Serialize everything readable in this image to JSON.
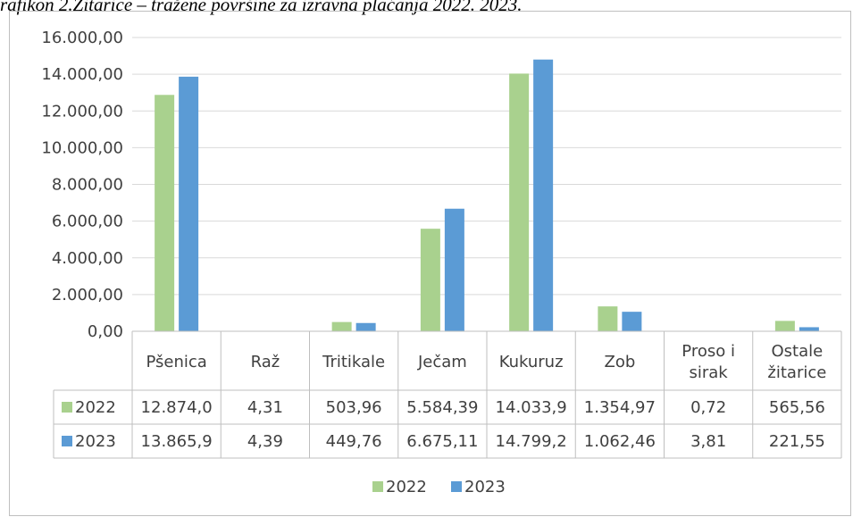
{
  "caption": "rafikon 2.Žitarice – tražene površine za izravna plaćanja 2022. 2023.",
  "chart_data": {
    "type": "bar",
    "categories": [
      [
        "Pšenica"
      ],
      [
        "Raž"
      ],
      [
        "Tritikale"
      ],
      [
        "Ječam"
      ],
      [
        "Kukuruz"
      ],
      [
        "Zob"
      ],
      [
        "Proso i",
        "sirak"
      ],
      [
        "Ostale",
        "žitarice"
      ]
    ],
    "series": [
      {
        "name": "2022",
        "color": "#a9d18e",
        "values": [
          12874.0,
          4.31,
          503.96,
          5584.39,
          14033.9,
          1354.97,
          0.72,
          565.56
        ],
        "labels": [
          "12.874,0",
          "4,31",
          "503,96",
          "5.584,39",
          "14.033,9",
          "1.354,97",
          "0,72",
          "565,56"
        ]
      },
      {
        "name": "2023",
        "color": "#5b9bd5",
        "values": [
          13865.9,
          4.39,
          449.76,
          6675.11,
          14799.2,
          1062.46,
          3.81,
          221.55
        ],
        "labels": [
          "13.865,9",
          "4,39",
          "449,76",
          "6.675,11",
          "14.799,2",
          "1.062,46",
          "3,81",
          "221,55"
        ]
      }
    ],
    "y_ticks": [
      "0,00",
      "2.000,00",
      "4.000,00",
      "6.000,00",
      "8.000,00",
      "10.000,00",
      "12.000,00",
      "14.000,00",
      "16.000,00"
    ],
    "ylim": [
      0,
      16000
    ],
    "grid": true,
    "legend_position": "bottom",
    "data_table": true
  }
}
